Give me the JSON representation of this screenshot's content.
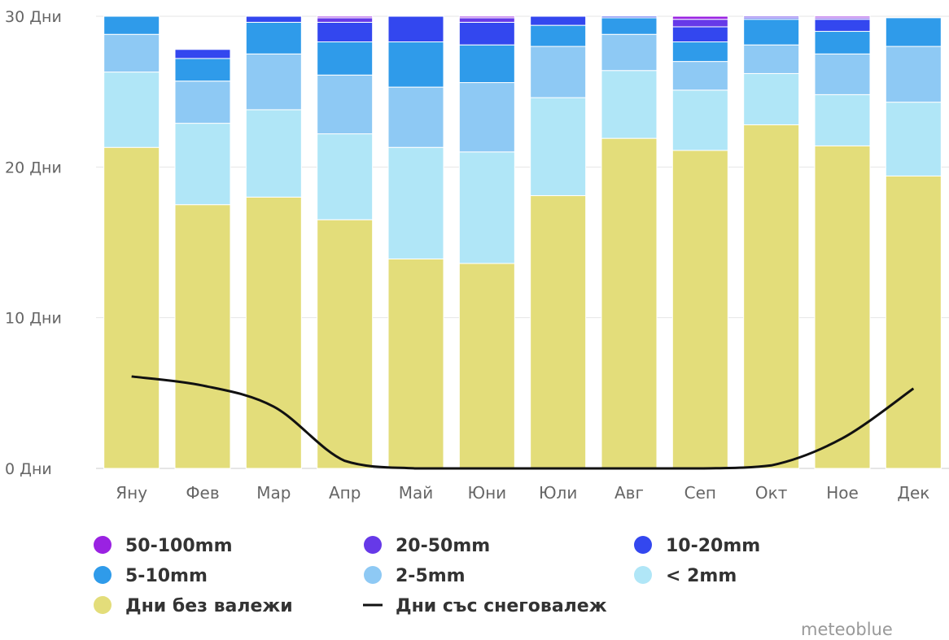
{
  "chart_data": {
    "type": "bar",
    "stacked": true,
    "categories": [
      "Яну",
      "Фев",
      "Мар",
      "Апр",
      "Май",
      "Юни",
      "Юли",
      "Авг",
      "Сеп",
      "Окт",
      "Ное",
      "Дек"
    ],
    "y_ticks": [
      "0 Дни",
      "10 Дни",
      "20 Дни",
      "30 Дни"
    ],
    "ylim": [
      0,
      30
    ],
    "grid": true,
    "legend_position": "bottom",
    "series": [
      {
        "name": "Дни без валежи",
        "color": "#e3dd7a",
        "values": [
          21.3,
          17.5,
          18.0,
          16.5,
          13.9,
          13.6,
          18.1,
          21.9,
          21.1,
          22.8,
          21.4,
          19.4
        ]
      },
      {
        "name": "< 2mm",
        "color": "#b0e6f7",
        "values": [
          5.0,
          5.4,
          5.8,
          5.7,
          7.4,
          7.4,
          6.5,
          4.5,
          4.0,
          3.4,
          3.4,
          4.9
        ]
      },
      {
        "name": "2-5mm",
        "color": "#8ec9f4",
        "values": [
          2.5,
          2.8,
          3.7,
          3.9,
          4.0,
          4.6,
          3.4,
          2.4,
          1.9,
          1.9,
          2.7,
          3.7
        ]
      },
      {
        "name": "5-10mm",
        "color": "#2f9bea",
        "values": [
          1.2,
          1.5,
          2.1,
          2.2,
          3.0,
          2.5,
          1.4,
          1.1,
          1.3,
          1.7,
          1.5,
          1.9
        ]
      },
      {
        "name": "10-20mm",
        "color": "#3347ef",
        "values": [
          0,
          0.6,
          0.4,
          1.3,
          1.7,
          1.5,
          0.7,
          0.1,
          1.0,
          0.1,
          0.8,
          0
        ]
      },
      {
        "name": "20-50mm",
        "color": "#6639e8",
        "values": [
          0,
          0,
          0,
          0.3,
          0,
          0.3,
          0,
          0,
          0.5,
          0.1,
          0.1,
          0
        ]
      },
      {
        "name": "50-100mm",
        "color": "#9a22e2",
        "values": [
          0,
          0,
          0,
          0.1,
          0,
          0.1,
          0,
          0,
          0.2,
          0,
          0.1,
          0
        ]
      }
    ],
    "line": {
      "name": "Дни със снеговалеж",
      "color": "#111111",
      "values": [
        6.1,
        5.5,
        4.1,
        0.5,
        0,
        0,
        0,
        0,
        0,
        0.2,
        2.0,
        5.3
      ]
    },
    "legend": [
      {
        "label": "50-100mm",
        "color": "#9a22e2",
        "kind": "dot"
      },
      {
        "label": "20-50mm",
        "color": "#6639e8",
        "kind": "dot"
      },
      {
        "label": "10-20mm",
        "color": "#3347ef",
        "kind": "dot"
      },
      {
        "label": "5-10mm",
        "color": "#2f9bea",
        "kind": "dot"
      },
      {
        "label": "2-5mm",
        "color": "#8ec9f4",
        "kind": "dot"
      },
      {
        "label": "< 2mm",
        "color": "#b0e6f7",
        "kind": "dot"
      },
      {
        "label": "Дни без валежи",
        "color": "#e3dd7a",
        "kind": "dot"
      },
      {
        "label": "Дни със снеговалеж",
        "color": "#111111",
        "kind": "line"
      }
    ]
  },
  "credit": "meteoblue"
}
